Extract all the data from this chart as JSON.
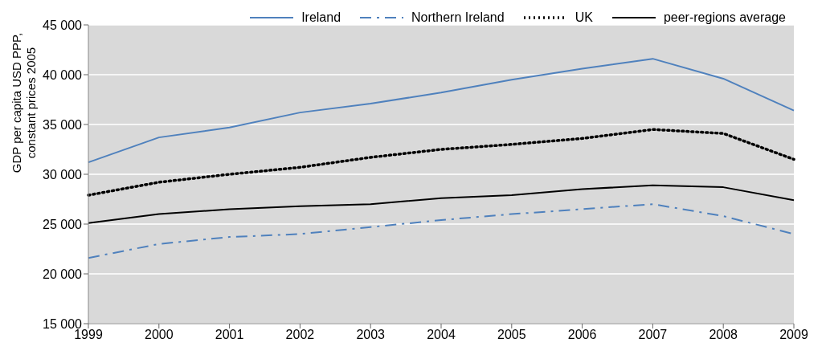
{
  "chart_data": {
    "type": "line",
    "ylabel": "GDP per capita USD PPP, constant prices 2005",
    "categories": [
      "1999",
      "2000",
      "2001",
      "2002",
      "2003",
      "2004",
      "2005",
      "2006",
      "2007",
      "2008",
      "2009"
    ],
    "series": [
      {
        "name": "Ireland",
        "color": "#4f81bd",
        "line_style": "solid",
        "values": [
          31200,
          33700,
          34700,
          36200,
          37100,
          38200,
          39500,
          40600,
          41600,
          39600,
          36400
        ]
      },
      {
        "name": "Northern Ireland",
        "color": "#4f81bd",
        "line_style": "dashed",
        "values": [
          21600,
          23000,
          23700,
          24000,
          24700,
          25400,
          26000,
          26500,
          27000,
          25800,
          24000
        ]
      },
      {
        "name": "UK",
        "color": "#000000",
        "line_style": "dotted",
        "values": [
          27900,
          29200,
          30000,
          30700,
          31700,
          32500,
          33000,
          33600,
          34500,
          34100,
          31500
        ]
      },
      {
        "name": "peer-regions average",
        "color": "#000000",
        "line_style": "solid",
        "values": [
          25100,
          26000,
          26500,
          26800,
          27000,
          27600,
          27900,
          28500,
          28900,
          28700,
          27400
        ]
      }
    ],
    "ylim": [
      15000,
      45000
    ],
    "yticks": [
      {
        "value": 15000,
        "label": "15 000"
      },
      {
        "value": 20000,
        "label": "20 000"
      },
      {
        "value": 25000,
        "label": "25 000"
      },
      {
        "value": 30000,
        "label": "30 000"
      },
      {
        "value": 35000,
        "label": "35 000"
      },
      {
        "value": 40000,
        "label": "40 000"
      },
      {
        "value": 45000,
        "label": "45 000"
      }
    ],
    "grid": "y",
    "legend": "top",
    "marker": "none"
  }
}
